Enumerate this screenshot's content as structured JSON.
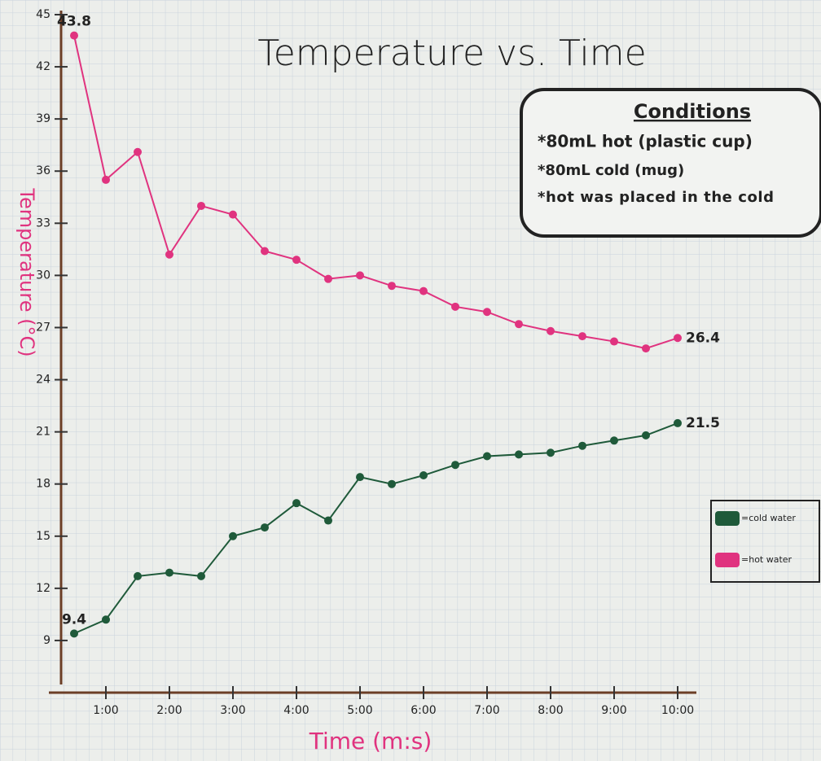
{
  "chart_data": {
    "type": "line",
    "title": "Temperature vs. Time",
    "x_label": "Time (m:s)",
    "y_label": "Temperature (°C)",
    "x": [
      30,
      60,
      90,
      120,
      150,
      180,
      210,
      240,
      270,
      300,
      330,
      360,
      390,
      420,
      450,
      480,
      510,
      540,
      570,
      600
    ],
    "series": [
      {
        "name": "=hot water",
        "color": "#e0337f",
        "values": [
          43.8,
          35.5,
          37.1,
          31.2,
          34.0,
          33.5,
          31.4,
          30.9,
          29.8,
          30.0,
          29.4,
          29.1,
          28.2,
          27.9,
          27.2,
          26.8,
          26.5,
          26.2,
          25.8,
          26.4
        ],
        "value_labels": [
          "43.8",
          null,
          null,
          null,
          null,
          null,
          null,
          null,
          null,
          null,
          null,
          null,
          null,
          null,
          null,
          null,
          null,
          null,
          null,
          "26.4"
        ]
      },
      {
        "name": "=cold water",
        "color": "#1f5a3a",
        "values": [
          9.4,
          10.2,
          12.7,
          12.9,
          12.7,
          15.0,
          15.5,
          16.9,
          15.9,
          18.4,
          18.0,
          18.5,
          19.1,
          19.6,
          19.7,
          19.8,
          20.2,
          20.5,
          20.8,
          21.5
        ],
        "value_labels": [
          "9.4",
          null,
          null,
          null,
          null,
          null,
          null,
          null,
          null,
          null,
          null,
          null,
          null,
          null,
          null,
          null,
          null,
          null,
          null,
          "21.5"
        ]
      }
    ],
    "xlim": [
      0,
      630
    ],
    "xticks": [
      {
        "value": 60,
        "label": "1:00"
      },
      {
        "value": 120,
        "label": "2:00"
      },
      {
        "value": 180,
        "label": "3:00"
      },
      {
        "value": 240,
        "label": "4:00"
      },
      {
        "value": 300,
        "label": "5:00"
      },
      {
        "value": 360,
        "label": "6:00"
      },
      {
        "value": 420,
        "label": "7:00"
      },
      {
        "value": 480,
        "label": "8:00"
      },
      {
        "value": 540,
        "label": "9:00"
      },
      {
        "value": 600,
        "label": "10:00"
      }
    ],
    "ylim": [
      6,
      45
    ],
    "yticks": [
      9,
      12,
      15,
      18,
      21,
      24,
      27,
      30,
      33,
      36,
      39,
      42,
      45
    ],
    "grid": true,
    "legend": "right",
    "annotations": {
      "title": "Conditions",
      "lines": [
        "*80mL hot (plastic cup)",
        "*80mL cold (mug)",
        "*hot was placed in the cold"
      ]
    }
  }
}
